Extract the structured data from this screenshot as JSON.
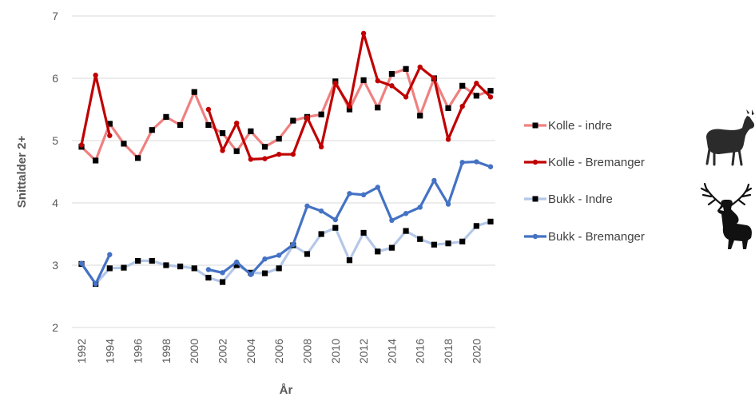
{
  "chart_data": {
    "type": "line",
    "xlabel": "År",
    "ylabel": "Snittalder 2+",
    "ylim": [
      2,
      7
    ],
    "yticks": [
      2,
      3,
      4,
      5,
      6,
      7
    ],
    "xlim": [
      1992,
      2021
    ],
    "xtick_labels": [
      "1992",
      "1994",
      "1996",
      "1998",
      "2000",
      "2002",
      "2004",
      "2006",
      "2008",
      "2010",
      "2012",
      "2014",
      "2016",
      "2018",
      "2020"
    ],
    "grid": "horizontal",
    "legend_position": "right",
    "series": [
      {
        "name": "Kolle - indre",
        "color": "#f08080",
        "marker": "square",
        "marker_color": "#000000",
        "points": [
          [
            1992,
            4.9
          ],
          [
            1993,
            4.68
          ],
          [
            1994,
            5.27
          ],
          [
            1995,
            4.95
          ],
          [
            1996,
            4.72
          ],
          [
            1997,
            5.17
          ],
          [
            1998,
            5.38
          ],
          [
            1999,
            5.25
          ],
          [
            2000,
            5.78
          ],
          [
            2001,
            5.25
          ],
          [
            2002,
            5.12
          ],
          [
            2003,
            4.83
          ],
          [
            2004,
            5.15
          ],
          [
            2005,
            4.9
          ],
          [
            2006,
            5.03
          ],
          [
            2007,
            5.32
          ],
          [
            2008,
            5.38
          ],
          [
            2009,
            5.42
          ],
          [
            2010,
            5.95
          ],
          [
            2011,
            5.5
          ],
          [
            2012,
            5.97
          ],
          [
            2013,
            5.53
          ],
          [
            2014,
            6.07
          ],
          [
            2015,
            6.15
          ],
          [
            2016,
            5.4
          ],
          [
            2017,
            6.0
          ],
          [
            2018,
            5.52
          ],
          [
            2019,
            5.88
          ],
          [
            2020,
            5.72
          ],
          [
            2021,
            5.8
          ]
        ]
      },
      {
        "name": "Kolle - Bremanger",
        "color": "#c00000",
        "marker": "circle",
        "marker_color": "#c00000",
        "points": [
          [
            1992,
            4.93
          ],
          [
            1993,
            6.05
          ],
          [
            1994,
            5.08
          ],
          [
            1994,
            null
          ],
          [
            2001,
            5.5
          ],
          [
            2002,
            4.84
          ],
          [
            2003,
            5.28
          ],
          [
            2004,
            4.7
          ],
          [
            2005,
            4.71
          ],
          [
            2006,
            4.78
          ],
          [
            2007,
            4.78
          ],
          [
            2008,
            5.37
          ],
          [
            2009,
            4.9
          ],
          [
            2010,
            5.92
          ],
          [
            2011,
            5.55
          ],
          [
            2012,
            6.72
          ],
          [
            2013,
            5.96
          ],
          [
            2014,
            5.88
          ],
          [
            2015,
            5.7
          ],
          [
            2016,
            6.18
          ],
          [
            2017,
            6.0
          ],
          [
            2018,
            5.02
          ],
          [
            2019,
            5.55
          ],
          [
            2020,
            5.92
          ],
          [
            2021,
            5.7
          ]
        ]
      },
      {
        "name": "Bukk - Indre",
        "color": "#b4c7e7",
        "marker": "square",
        "marker_color": "#000000",
        "points": [
          [
            1992,
            3.02
          ],
          [
            1993,
            2.7
          ],
          [
            1994,
            2.95
          ],
          [
            1995,
            2.96
          ],
          [
            1996,
            3.07
          ],
          [
            1997,
            3.07
          ],
          [
            1998,
            3.0
          ],
          [
            1999,
            2.98
          ],
          [
            2000,
            2.95
          ],
          [
            2001,
            2.8
          ],
          [
            2002,
            2.73
          ],
          [
            2003,
            3.0
          ],
          [
            2004,
            2.88
          ],
          [
            2005,
            2.87
          ],
          [
            2006,
            2.95
          ],
          [
            2007,
            3.32
          ],
          [
            2008,
            3.18
          ],
          [
            2009,
            3.5
          ],
          [
            2010,
            3.6
          ],
          [
            2011,
            3.08
          ],
          [
            2012,
            3.52
          ],
          [
            2013,
            3.22
          ],
          [
            2014,
            3.28
          ],
          [
            2015,
            3.55
          ],
          [
            2016,
            3.42
          ],
          [
            2017,
            3.33
          ],
          [
            2018,
            3.35
          ],
          [
            2019,
            3.38
          ],
          [
            2020,
            3.63
          ],
          [
            2021,
            3.7
          ]
        ]
      },
      {
        "name": "Bukk - Bremanger",
        "color": "#4472c4",
        "marker": "circle",
        "marker_color": "#4472c4",
        "points": [
          [
            1992,
            3.03
          ],
          [
            1993,
            2.7
          ],
          [
            1994,
            3.17
          ],
          [
            1994,
            null
          ],
          [
            2001,
            2.93
          ],
          [
            2002,
            2.88
          ],
          [
            2003,
            3.05
          ],
          [
            2004,
            2.85
          ],
          [
            2005,
            3.1
          ],
          [
            2006,
            3.16
          ],
          [
            2007,
            3.33
          ],
          [
            2008,
            3.95
          ],
          [
            2009,
            3.87
          ],
          [
            2010,
            3.73
          ],
          [
            2011,
            4.15
          ],
          [
            2012,
            4.13
          ],
          [
            2013,
            4.25
          ],
          [
            2014,
            3.72
          ],
          [
            2015,
            3.83
          ],
          [
            2016,
            3.93
          ],
          [
            2017,
            4.36
          ],
          [
            2018,
            3.98
          ],
          [
            2019,
            4.65
          ],
          [
            2020,
            4.66
          ],
          [
            2021,
            4.58
          ]
        ]
      }
    ]
  },
  "icons": [
    "deer-hind-icon",
    "stag-icon"
  ]
}
